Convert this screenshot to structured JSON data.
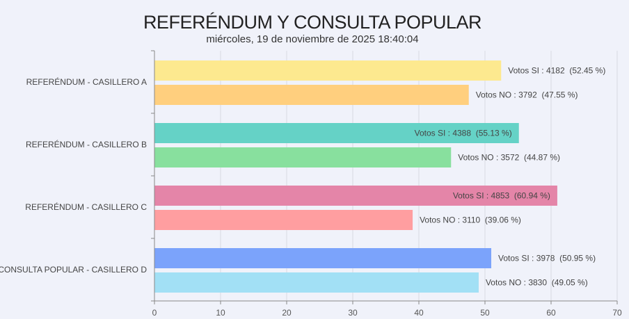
{
  "chart_data": {
    "type": "bar",
    "orientation": "horizontal",
    "title": "REFERÉNDUM Y CONSULTA POPULAR",
    "subtitle": "miércoles, 19 de noviembre de 2025 18:40:04",
    "xlim": [
      0,
      70
    ],
    "xticks": [
      0,
      10,
      20,
      30,
      40,
      50,
      60,
      70
    ],
    "grid": true,
    "categories": [
      "REFERÉNDUM - CASILLERO A",
      "REFERÉNDUM - CASILLERO B",
      "REFERÉNDUM - CASILLERO C",
      "CONSULTA POPULAR - CASILLERO D"
    ],
    "groups": [
      {
        "bars": [
          {
            "label": "Votos SI : 4182  (52.45 %)",
            "value": 52.45,
            "color": "#fde98f",
            "label_inside": false
          },
          {
            "label": "Votos NO : 3792  (47.55 %)",
            "value": 47.55,
            "color": "#ffcf7e",
            "label_inside": false
          }
        ]
      },
      {
        "bars": [
          {
            "label": "Votos SI : 4388  (55.13 %)",
            "value": 55.13,
            "color": "#65d2c6",
            "label_inside": true
          },
          {
            "label": "Votos NO : 3572  (44.87 %)",
            "value": 44.87,
            "color": "#88e09e",
            "label_inside": false
          }
        ]
      },
      {
        "bars": [
          {
            "label": "Votos SI : 4853  (60.94 %)",
            "value": 60.94,
            "color": "#e485a8",
            "label_inside": true
          },
          {
            "label": "Votos NO : 3110  (39.06 %)",
            "value": 39.06,
            "color": "#ff9ea0",
            "label_inside": false
          }
        ]
      },
      {
        "bars": [
          {
            "label": "Votos SI : 3978  (50.95 %)",
            "value": 50.95,
            "color": "#7ba3fb",
            "label_inside": false
          },
          {
            "label": "Votos NO : 3830  (49.05 %)",
            "value": 49.05,
            "color": "#a2e0f5",
            "label_inside": false
          }
        ]
      }
    ]
  }
}
